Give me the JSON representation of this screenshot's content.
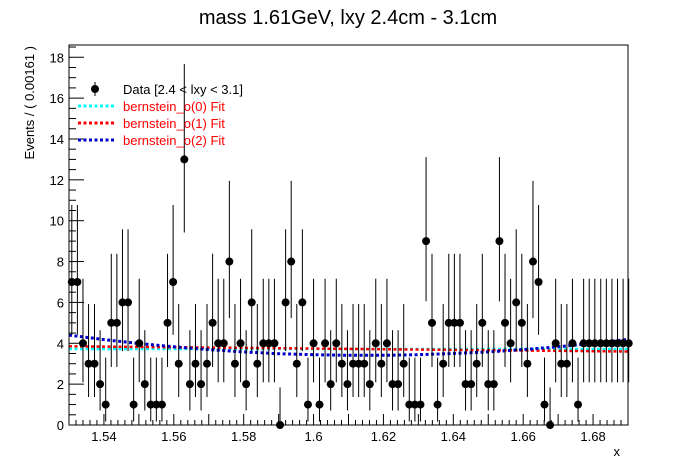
{
  "chart_data": {
    "type": "scatter",
    "title": "mass 1.61GeV, lxy 2.4cm - 3.1cm",
    "xlabel": "x",
    "ylabel": "Events / ( 0.00161 )",
    "xlim": [
      1.53,
      1.69
    ],
    "ylim": [
      0,
      18.6
    ],
    "x_ticks": [
      1.54,
      1.56,
      1.58,
      1.6,
      1.62,
      1.64,
      1.66,
      1.68
    ],
    "x_tick_labels": [
      "1.54",
      "1.56",
      "1.58",
      "1.6",
      "1.62",
      "1.64",
      "1.66",
      "1.68"
    ],
    "y_ticks": [
      0,
      2,
      4,
      6,
      8,
      10,
      12,
      14,
      16,
      18
    ],
    "y_tick_labels": [
      "0",
      "2",
      "4",
      "6",
      "8",
      "10",
      "12",
      "14",
      "16",
      "18"
    ],
    "legend": [
      {
        "label": "Data [2.4 < lxy < 3.1]",
        "color": "#000000",
        "style": "marker"
      },
      {
        "label": "bernstein_o(0) Fit",
        "color": "#00ffff",
        "style": "dotted"
      },
      {
        "label": "bernstein_o(1) Fit",
        "color": "#ff0000",
        "style": "dotted"
      },
      {
        "label": "bernstein_o(2) Fit",
        "color": "#0000cc",
        "style": "dotted"
      }
    ],
    "legend_text_colors": [
      "#000000",
      "#ff0000",
      "#ff0000",
      "#ff0000"
    ],
    "series": [
      {
        "name": "Data [2.4 < lxy < 3.1]",
        "type": "points_with_errors",
        "x": [
          1.5308,
          1.5324,
          1.534,
          1.5356,
          1.5373,
          1.5389,
          1.5405,
          1.5421,
          1.5437,
          1.5453,
          1.5469,
          1.5485,
          1.5501,
          1.5517,
          1.5534,
          1.555,
          1.5566,
          1.5582,
          1.5598,
          1.5614,
          1.563,
          1.5646,
          1.5662,
          1.5678,
          1.5695,
          1.5711,
          1.5727,
          1.5743,
          1.5759,
          1.5775,
          1.5791,
          1.5807,
          1.5823,
          1.5839,
          1.5856,
          1.5872,
          1.5888,
          1.5904,
          1.592,
          1.5936,
          1.5952,
          1.5968,
          1.5984,
          1.6,
          1.6017,
          1.6033,
          1.6049,
          1.6065,
          1.6081,
          1.6097,
          1.6113,
          1.6129,
          1.6145,
          1.6161,
          1.6178,
          1.6194,
          1.621,
          1.6226,
          1.6242,
          1.6258,
          1.6274,
          1.629,
          1.6306,
          1.6322,
          1.6339,
          1.6355,
          1.6371,
          1.6387,
          1.6403,
          1.6419,
          1.6435,
          1.6451,
          1.6467,
          1.6483,
          1.65,
          1.6516,
          1.6532,
          1.6548,
          1.6564,
          1.658,
          1.6596,
          1.6612,
          1.6628,
          1.6644,
          1.6661,
          1.6677,
          1.6693,
          1.6709,
          1.6725,
          1.6741,
          1.6757,
          1.6773,
          1.6789,
          1.6805,
          1.6822,
          1.6838,
          1.6854,
          1.687,
          1.6886,
          1.6902
        ],
        "y": [
          7,
          7,
          4,
          3,
          3,
          2,
          1,
          5,
          5,
          6,
          6,
          1,
          4,
          2,
          1,
          1,
          1,
          5,
          7,
          3,
          13,
          2,
          3,
          2,
          3,
          5,
          4,
          4,
          8,
          3,
          4,
          2,
          6,
          3,
          4,
          4,
          4,
          0,
          6,
          8,
          3,
          6,
          1,
          4,
          1,
          4,
          2,
          4,
          3,
          2,
          3,
          3,
          3,
          2,
          4,
          3,
          4,
          2,
          2,
          3,
          1,
          1,
          1,
          9,
          5,
          1,
          3,
          5,
          5,
          5,
          2,
          2,
          3,
          5,
          2,
          2,
          9,
          5,
          4,
          6,
          5,
          3,
          8,
          7,
          1,
          0,
          4,
          3,
          3,
          4,
          1,
          4,
          4,
          4,
          4,
          4,
          4,
          4,
          4,
          4
        ],
        "yerr_low": [
          2.58,
          2.58,
          1.91,
          1.63,
          1.63,
          1.29,
          0.83,
          2.16,
          2.16,
          2.38,
          2.38,
          0.83,
          1.91,
          1.29,
          0.83,
          0.83,
          0.83,
          2.16,
          2.58,
          1.63,
          3.58,
          1.29,
          1.63,
          1.29,
          1.63,
          2.16,
          1.91,
          1.91,
          2.77,
          1.63,
          1.91,
          1.29,
          2.38,
          1.63,
          1.91,
          1.91,
          1.91,
          0,
          2.38,
          2.77,
          1.63,
          2.38,
          0.83,
          1.91,
          0.83,
          1.91,
          1.29,
          1.91,
          1.63,
          1.29,
          1.63,
          1.63,
          1.63,
          1.29,
          1.91,
          1.63,
          1.91,
          1.29,
          1.29,
          1.63,
          0.83,
          0.83,
          0.83,
          2.94,
          2.16,
          0.83,
          1.63,
          2.16,
          2.16,
          2.16,
          1.29,
          1.29,
          1.63,
          2.16,
          1.29,
          1.29,
          2.94,
          2.16,
          1.91,
          2.38,
          2.16,
          1.63,
          2.77,
          2.58,
          0.83,
          0,
          1.91,
          1.63,
          1.63,
          1.91,
          0.83,
          1.91,
          1.91,
          1.91,
          1.91,
          1.91,
          1.91,
          1.91,
          1.91,
          1.91
        ],
        "yerr_high": [
          3.77,
          3.77,
          3.16,
          2.92,
          2.92,
          2.64,
          2.3,
          3.38,
          3.38,
          3.58,
          3.58,
          2.3,
          3.16,
          2.64,
          2.3,
          2.3,
          2.3,
          3.38,
          3.77,
          2.92,
          4.67,
          2.64,
          2.92,
          2.64,
          2.92,
          3.38,
          3.16,
          3.16,
          3.95,
          2.92,
          3.16,
          2.64,
          3.58,
          2.92,
          3.16,
          3.16,
          3.16,
          1.84,
          3.58,
          3.95,
          2.92,
          3.58,
          2.3,
          3.16,
          2.3,
          3.16,
          2.64,
          3.16,
          2.92,
          2.64,
          2.92,
          2.92,
          2.92,
          2.64,
          3.16,
          2.92,
          3.16,
          2.64,
          2.64,
          2.92,
          2.3,
          2.3,
          2.3,
          4.11,
          3.38,
          2.3,
          2.92,
          3.38,
          3.38,
          3.38,
          2.64,
          2.64,
          2.92,
          3.38,
          2.64,
          2.64,
          4.11,
          3.38,
          3.16,
          3.58,
          3.38,
          2.92,
          3.95,
          3.77,
          2.3,
          1.84,
          3.16,
          2.92,
          2.92,
          3.16,
          2.3,
          3.16,
          3.16,
          3.16,
          3.16,
          3.16,
          3.16,
          3.16,
          3.16,
          3.16
        ]
      },
      {
        "name": "bernstein_o(0) Fit",
        "type": "line",
        "x": [
          1.53,
          1.69
        ],
        "y": [
          3.72,
          3.72
        ]
      },
      {
        "name": "bernstein_o(1) Fit",
        "type": "line",
        "x": [
          1.53,
          1.69
        ],
        "y": [
          3.85,
          3.6
        ]
      },
      {
        "name": "bernstein_o(2) Fit",
        "type": "line",
        "x": [
          1.53,
          1.54,
          1.55,
          1.56,
          1.57,
          1.58,
          1.59,
          1.6,
          1.61,
          1.62,
          1.63,
          1.64,
          1.65,
          1.66,
          1.67,
          1.68,
          1.69
        ],
        "y": [
          4.4,
          4.18,
          3.99,
          3.83,
          3.69,
          3.58,
          3.49,
          3.44,
          3.41,
          3.41,
          3.44,
          3.5,
          3.58,
          3.69,
          3.83,
          4.0,
          4.19
        ]
      }
    ],
    "grid": false,
    "legend_position": "top-left"
  }
}
